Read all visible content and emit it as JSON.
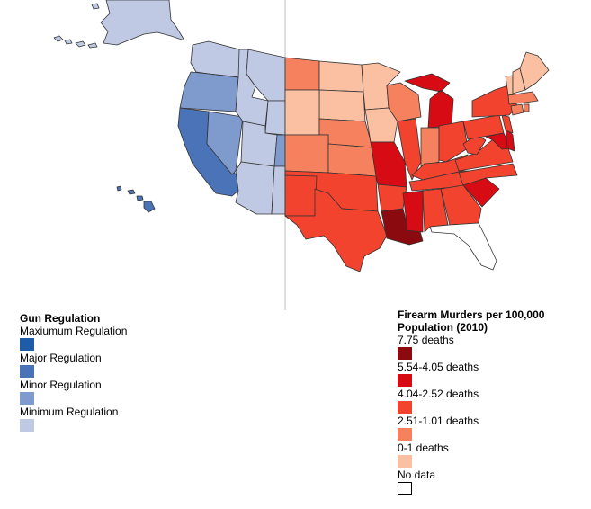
{
  "legend_left": {
    "title": "Gun Regulation",
    "items": [
      {
        "label": "Maxiumum Regulation",
        "color": "#1f5ca8"
      },
      {
        "label": "Major Regulation",
        "color": "#4a73b8"
      },
      {
        "label": "Minor Regulation",
        "color": "#7f9acc"
      },
      {
        "label": "Minimum Regulation",
        "color": "#c0c9e4"
      }
    ]
  },
  "legend_right": {
    "title": "Firearm Murders per 100,000 Population (2010)",
    "items": [
      {
        "label": "7.75 deaths",
        "color": "#8a0a10"
      },
      {
        "label": "5.54-4.05 deaths",
        "color": "#d60b14"
      },
      {
        "label": "4.04-2.52 deaths",
        "color": "#f2432f"
      },
      {
        "label": "2.51-1.01 deaths",
        "color": "#f5815e"
      },
      {
        "label": "0-1 deaths",
        "color": "#fbbfa2"
      },
      {
        "label": "No data",
        "color": "#ffffff"
      }
    ]
  },
  "colors": {
    "divider": "#c8c8c8",
    "border": "#222222"
  }
}
